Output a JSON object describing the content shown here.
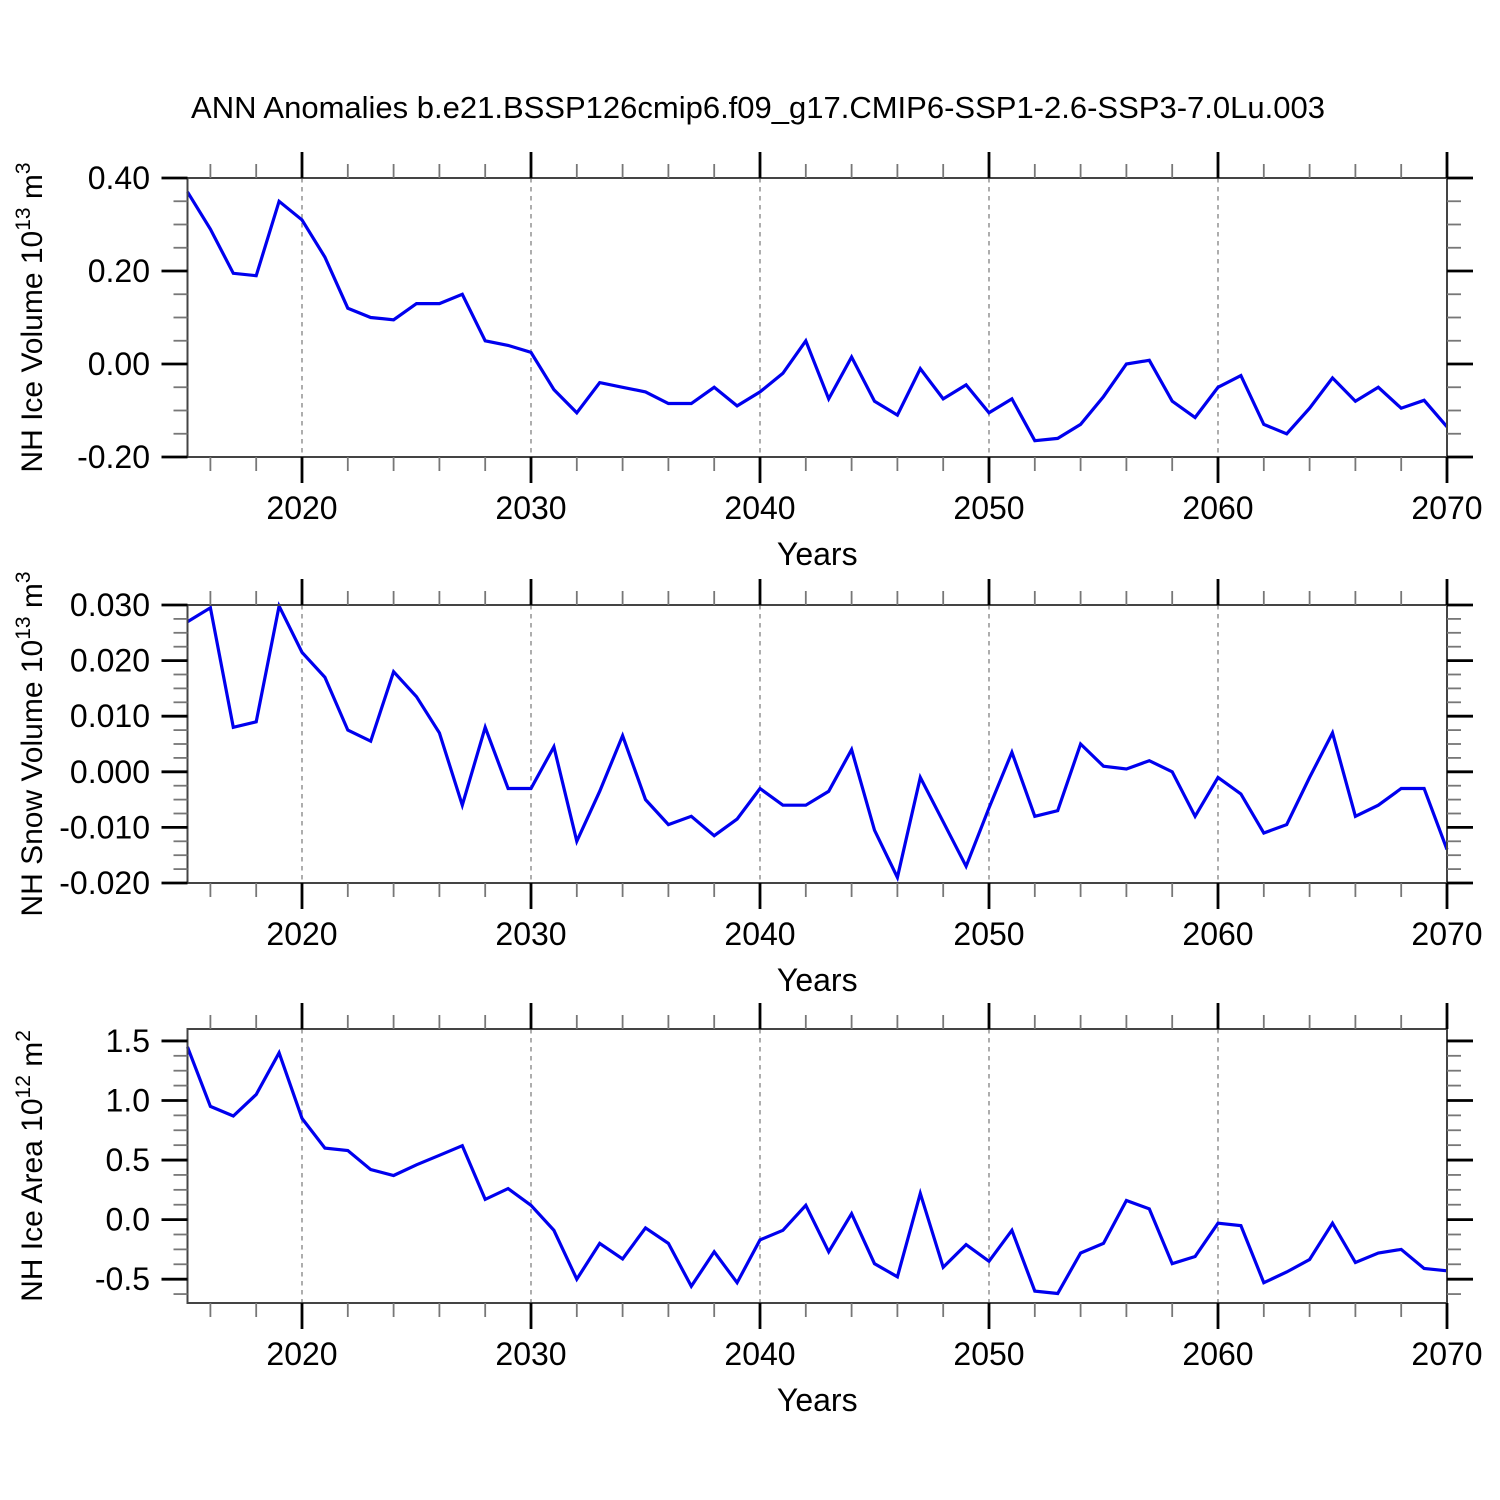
{
  "title": "ANN Anomalies b.e21.BSSP126cmip6.f09_g17.CMIP6-SSP1-2.6-SSP3-7.0Lu.003",
  "chart_data": [
    {
      "type": "line",
      "name": "nh-ice-volume",
      "title": "",
      "ylabel_text": "NH Ice Volume 10^13 m^3",
      "ylabel_parts": [
        [
          "NH Ice Volume 10",
          0
        ],
        [
          "13",
          1
        ],
        [
          " m",
          0
        ],
        [
          "3",
          1
        ]
      ],
      "xlabel": "Years",
      "xlim": [
        2015,
        2070
      ],
      "ylim": [
        -0.2,
        0.4
      ],
      "x_start": 2015,
      "x_step": 1,
      "values": [
        0.37,
        0.29,
        0.195,
        0.19,
        0.35,
        0.31,
        0.23,
        0.12,
        0.1,
        0.095,
        0.13,
        0.13,
        0.15,
        0.05,
        0.04,
        0.025,
        -0.055,
        -0.105,
        -0.04,
        -0.05,
        -0.06,
        -0.085,
        -0.085,
        -0.05,
        -0.09,
        -0.06,
        -0.02,
        0.05,
        -0.075,
        0.015,
        -0.08,
        -0.11,
        -0.01,
        -0.075,
        -0.045,
        -0.105,
        -0.075,
        -0.165,
        -0.16,
        -0.13,
        -0.07,
        0.0,
        0.008,
        -0.08,
        -0.115,
        -0.05,
        -0.025,
        -0.13,
        -0.15,
        -0.095,
        -0.03,
        -0.08,
        -0.05,
        -0.095,
        -0.078,
        -0.135
      ],
      "ytick_values": [
        0.4,
        0.2,
        0.0,
        -0.2
      ],
      "ytick_labels": [
        "0.40",
        "0.20",
        "0.00",
        "-0.20"
      ],
      "y_minor_step": 0.05,
      "xtick_values": [
        2020,
        2030,
        2040,
        2050,
        2060,
        2070
      ],
      "xtick_labels": [
        "2020",
        "2030",
        "2040",
        "2050",
        "2060",
        "2070"
      ],
      "x_minor_step": 2,
      "grid_x": [
        2020,
        2030,
        2040,
        2050,
        2060
      ],
      "line_color": "#0000EE",
      "grid_on": true,
      "legend": "none"
    },
    {
      "type": "line",
      "name": "nh-snow-volume",
      "title": "",
      "ylabel_text": "NH Snow Volume 10^13 m^3",
      "ylabel_parts": [
        [
          "NH Snow Volume 10",
          0
        ],
        [
          "13",
          1
        ],
        [
          " m",
          0
        ],
        [
          "3",
          1
        ]
      ],
      "xlabel": "Years",
      "xlim": [
        2015,
        2070
      ],
      "ylim": [
        -0.02,
        0.03
      ],
      "x_start": 2015,
      "x_step": 1,
      "values": [
        0.027,
        0.0295,
        0.008,
        0.009,
        0.0298,
        0.0215,
        0.017,
        0.0075,
        0.0055,
        0.018,
        0.0135,
        0.007,
        -0.006,
        0.008,
        -0.003,
        -0.003,
        0.0045,
        -0.0125,
        -0.0035,
        0.0065,
        -0.005,
        -0.0095,
        -0.008,
        -0.0115,
        -0.0085,
        -0.003,
        -0.006,
        -0.006,
        -0.0035,
        0.004,
        -0.0105,
        -0.019,
        -0.001,
        -0.009,
        -0.017,
        -0.0065,
        0.0035,
        -0.008,
        -0.007,
        0.005,
        0.001,
        0.0005,
        0.002,
        0.0,
        -0.008,
        -0.001,
        -0.004,
        -0.011,
        -0.0095,
        -0.001,
        0.007,
        -0.008,
        -0.006,
        -0.003,
        -0.003,
        -0.014
      ],
      "ytick_values": [
        0.03,
        0.02,
        0.01,
        0.0,
        -0.01,
        -0.02
      ],
      "ytick_labels": [
        "0.030",
        "0.020",
        "0.010",
        "0.000",
        "-0.010",
        "-0.020"
      ],
      "y_minor_step": 0.0025,
      "xtick_values": [
        2020,
        2030,
        2040,
        2050,
        2060,
        2070
      ],
      "xtick_labels": [
        "2020",
        "2030",
        "2040",
        "2050",
        "2060",
        "2070"
      ],
      "x_minor_step": 2,
      "grid_x": [
        2020,
        2030,
        2040,
        2050,
        2060
      ],
      "line_color": "#0000EE",
      "grid_on": true,
      "legend": "none"
    },
    {
      "type": "line",
      "name": "nh-ice-area",
      "title": "",
      "ylabel_text": "NH Ice Area 10^12 m^2",
      "ylabel_parts": [
        [
          "NH Ice Area 10",
          0
        ],
        [
          "12",
          1
        ],
        [
          " m",
          0
        ],
        [
          "2",
          1
        ]
      ],
      "xlabel": "Years",
      "xlim": [
        2015,
        2070
      ],
      "ylim": [
        -0.7,
        1.6
      ],
      "x_start": 2015,
      "x_step": 1,
      "values": [
        1.45,
        0.95,
        0.87,
        1.05,
        1.4,
        0.85,
        0.6,
        0.58,
        0.42,
        0.37,
        0.46,
        0.54,
        0.62,
        0.17,
        0.26,
        0.12,
        -0.09,
        -0.5,
        -0.2,
        -0.33,
        -0.07,
        -0.2,
        -0.56,
        -0.27,
        -0.53,
        -0.17,
        -0.09,
        0.12,
        -0.27,
        0.05,
        -0.37,
        -0.48,
        0.22,
        -0.4,
        -0.21,
        -0.35,
        -0.09,
        -0.6,
        -0.62,
        -0.28,
        -0.2,
        0.16,
        0.09,
        -0.37,
        -0.31,
        -0.03,
        -0.05,
        -0.53,
        -0.44,
        -0.335,
        -0.03,
        -0.36,
        -0.28,
        -0.25,
        -0.41,
        -0.43
      ],
      "ytick_values": [
        1.5,
        1.0,
        0.5,
        0.0,
        -0.5
      ],
      "ytick_labels": [
        "1.5",
        "1.0",
        "0.5",
        "0.0",
        "-0.5"
      ],
      "y_minor_step": 0.125,
      "xtick_values": [
        2020,
        2030,
        2040,
        2050,
        2060,
        2070
      ],
      "xtick_labels": [
        "2020",
        "2030",
        "2040",
        "2050",
        "2060",
        "2070"
      ],
      "x_minor_step": 2,
      "grid_x": [
        2020,
        2030,
        2040,
        2050,
        2060
      ],
      "line_color": "#0000EE",
      "grid_on": true,
      "legend": "none"
    }
  ]
}
